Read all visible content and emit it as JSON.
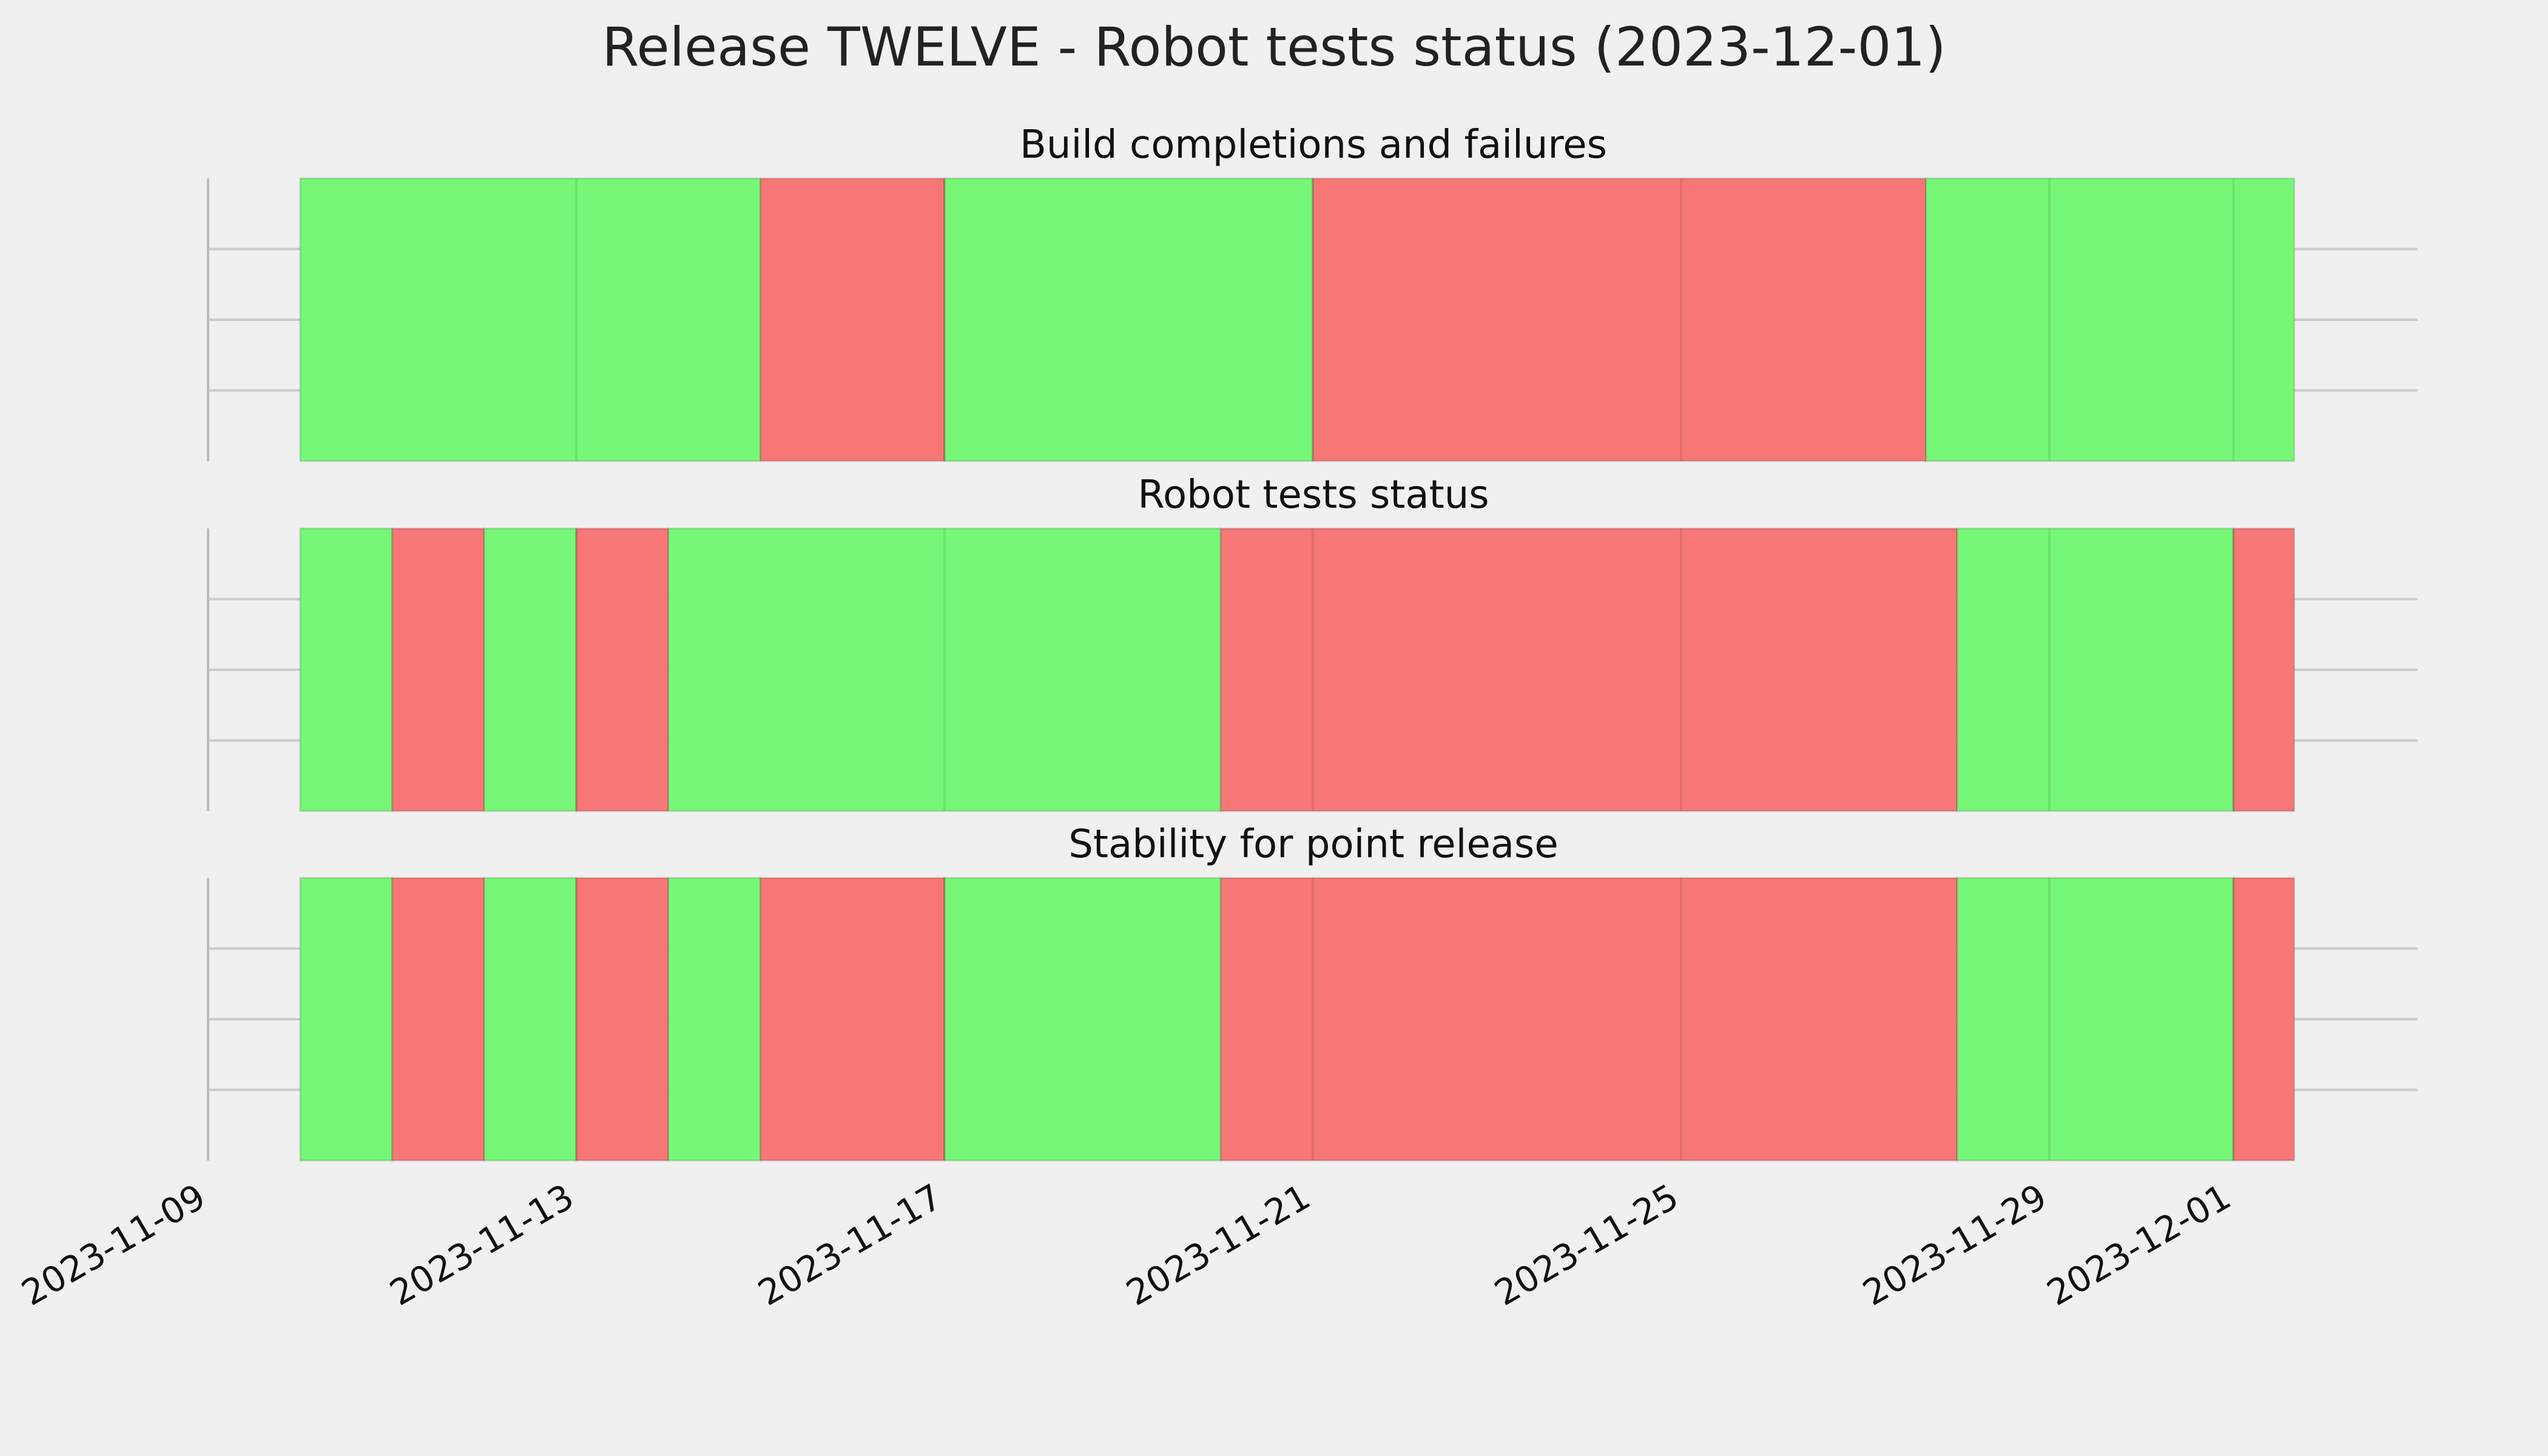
{
  "title": "Release TWELVE - Robot tests status (2023-12-01)",
  "colors": {
    "pass": "#76f777",
    "fail": "#f77676",
    "background": "#f0f0f0",
    "grid": "#cbcbcb",
    "text": "#000000"
  },
  "chart_data": {
    "type": "timeline",
    "grid": true,
    "x_axis": {
      "min": "2023-11-09",
      "max": "2023-12-03",
      "ticks": [
        "2023-11-09",
        "2023-11-13",
        "2023-11-17",
        "2023-11-21",
        "2023-11-25",
        "2023-11-29",
        "2023-12-01"
      ]
    },
    "panels": [
      {
        "title": "Build completions and failures",
        "segments": [
          {
            "start": "2023-11-10",
            "end": "2023-11-15",
            "status": "pass"
          },
          {
            "start": "2023-11-15",
            "end": "2023-11-17",
            "status": "fail"
          },
          {
            "start": "2023-11-17",
            "end": "2023-11-21",
            "status": "pass"
          },
          {
            "start": "2023-11-21",
            "end": "2023-11-27.66",
            "status": "fail"
          },
          {
            "start": "2023-11-27.66",
            "end": "2023-12-01.66",
            "status": "pass"
          }
        ]
      },
      {
        "title": "Robot tests status",
        "segments": [
          {
            "start": "2023-11-10",
            "end": "2023-11-11",
            "status": "pass"
          },
          {
            "start": "2023-11-11",
            "end": "2023-11-12",
            "status": "fail"
          },
          {
            "start": "2023-11-12",
            "end": "2023-11-13",
            "status": "pass"
          },
          {
            "start": "2023-11-13",
            "end": "2023-11-14",
            "status": "fail"
          },
          {
            "start": "2023-11-14",
            "end": "2023-11-20",
            "status": "pass"
          },
          {
            "start": "2023-11-20",
            "end": "2023-11-28",
            "status": "fail"
          },
          {
            "start": "2023-11-28",
            "end": "2023-12-01",
            "status": "pass"
          },
          {
            "start": "2023-12-01",
            "end": "2023-12-01.66",
            "status": "fail"
          }
        ]
      },
      {
        "title": "Stability for point release",
        "segments": [
          {
            "start": "2023-11-10",
            "end": "2023-11-11",
            "status": "pass"
          },
          {
            "start": "2023-11-11",
            "end": "2023-11-12",
            "status": "fail"
          },
          {
            "start": "2023-11-12",
            "end": "2023-11-13",
            "status": "pass"
          },
          {
            "start": "2023-11-13",
            "end": "2023-11-14",
            "status": "fail"
          },
          {
            "start": "2023-11-14",
            "end": "2023-11-15",
            "status": "pass"
          },
          {
            "start": "2023-11-15",
            "end": "2023-11-17",
            "status": "fail"
          },
          {
            "start": "2023-11-17",
            "end": "2023-11-20",
            "status": "pass"
          },
          {
            "start": "2023-11-20",
            "end": "2023-11-28",
            "status": "fail"
          },
          {
            "start": "2023-11-28",
            "end": "2023-12-01",
            "status": "pass"
          },
          {
            "start": "2023-12-01",
            "end": "2023-12-01.66",
            "status": "fail"
          }
        ]
      }
    ]
  }
}
